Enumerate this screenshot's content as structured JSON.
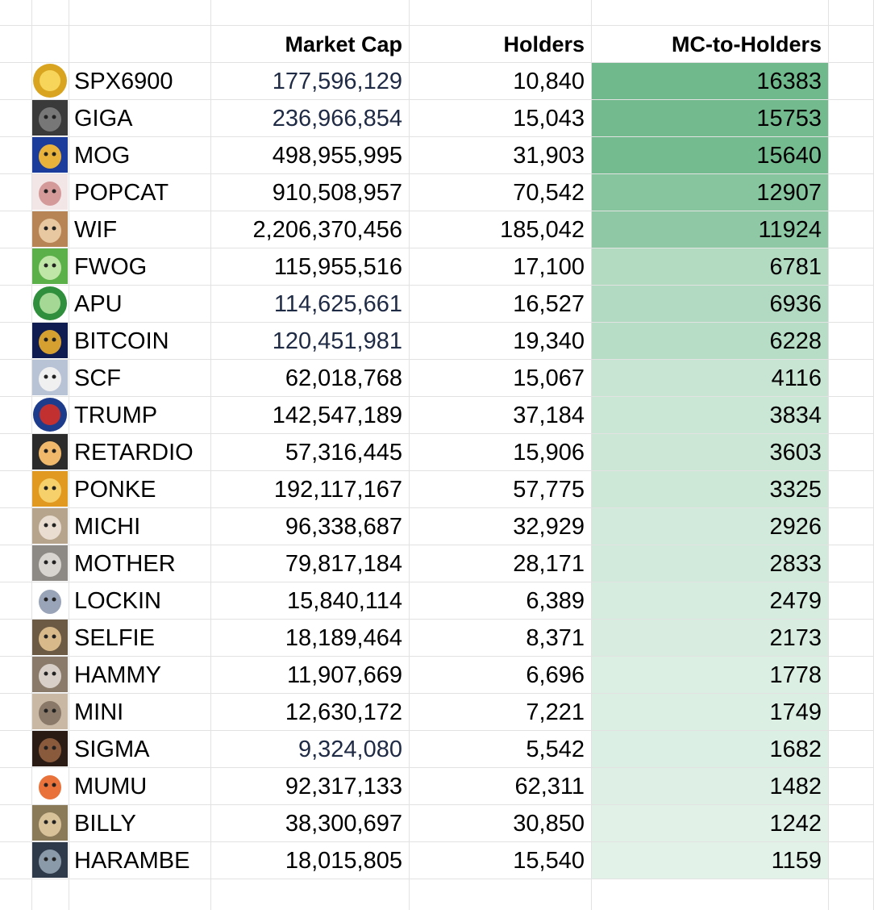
{
  "headers": {
    "market_cap": "Market Cap",
    "holders": "Holders",
    "mc_to_holders": "MC-to-Holders"
  },
  "colors": {
    "heat_dark": "#6fb98c",
    "heat_light": "#e2f2e8",
    "market_cap_blue": "#1f2a44",
    "grid": "#e2e2e2"
  },
  "rows": [
    {
      "name": "SPX6900",
      "market_cap": "177,596,129",
      "holders": "10,840",
      "ratio": "16383",
      "icon": "spx-coin-icon",
      "mc_blue": true
    },
    {
      "name": "GIGA",
      "market_cap": "236,966,854",
      "holders": "15,043",
      "ratio": "15753",
      "icon": "gigachad-face-icon",
      "mc_blue": true
    },
    {
      "name": "MOG",
      "market_cap": "498,955,995",
      "holders": "31,903",
      "ratio": "15640",
      "icon": "mog-cat-icon",
      "mc_blue": false
    },
    {
      "name": "POPCAT",
      "market_cap": "910,508,957",
      "holders": "70,542",
      "ratio": "12907",
      "icon": "popcat-icon",
      "mc_blue": false
    },
    {
      "name": "WIF",
      "market_cap": "2,206,370,456",
      "holders": "185,042",
      "ratio": "11924",
      "icon": "dog-with-hat-icon",
      "mc_blue": false
    },
    {
      "name": "FWOG",
      "market_cap": "115,955,516",
      "holders": "17,100",
      "ratio": "6781",
      "icon": "frog-icon",
      "mc_blue": false
    },
    {
      "name": "APU",
      "market_cap": "114,625,661",
      "holders": "16,527",
      "ratio": "6936",
      "icon": "apu-frog-icon",
      "mc_blue": true
    },
    {
      "name": "BITCOIN",
      "market_cap": "120,451,981",
      "holders": "19,340",
      "ratio": "6228",
      "icon": "harry-potter-bitcoin-icon",
      "mc_blue": true
    },
    {
      "name": "SCF",
      "market_cap": "62,018,768",
      "holders": "15,067",
      "ratio": "4116",
      "icon": "hooded-cat-icon",
      "mc_blue": false
    },
    {
      "name": "TRUMP",
      "market_cap": "142,547,189",
      "holders": "37,184",
      "ratio": "3834",
      "icon": "trump-flag-icon",
      "mc_blue": false
    },
    {
      "name": "RETARDIO",
      "market_cap": "57,316,445",
      "holders": "15,906",
      "ratio": "3603",
      "icon": "retardio-cap-icon",
      "mc_blue": false
    },
    {
      "name": "PONKE",
      "market_cap": "192,117,167",
      "holders": "57,775",
      "ratio": "3325",
      "icon": "ponke-monkey-icon",
      "mc_blue": false
    },
    {
      "name": "MICHI",
      "market_cap": "96,338,687",
      "holders": "32,929",
      "ratio": "2926",
      "icon": "michi-cat-icon",
      "mc_blue": false
    },
    {
      "name": "MOTHER",
      "market_cap": "79,817,184",
      "holders": "28,171",
      "ratio": "2833",
      "icon": "mother-photo-icon",
      "mc_blue": false
    },
    {
      "name": "LOCKIN",
      "market_cap": "15,840,114",
      "holders": "6,389",
      "ratio": "2479",
      "icon": "lockin-chair-icon",
      "mc_blue": false
    },
    {
      "name": "SELFIE",
      "market_cap": "18,189,464",
      "holders": "8,371",
      "ratio": "2173",
      "icon": "selfie-dog-icon",
      "mc_blue": false
    },
    {
      "name": "HAMMY",
      "market_cap": "11,907,669",
      "holders": "6,696",
      "ratio": "1778",
      "icon": "hamster-icon",
      "mc_blue": false
    },
    {
      "name": "MINI",
      "market_cap": "12,630,172",
      "holders": "7,221",
      "ratio": "1749",
      "icon": "mini-monkey-icon",
      "mc_blue": false
    },
    {
      "name": "SIGMA",
      "market_cap": "9,324,080",
      "holders": "5,542",
      "ratio": "1682",
      "icon": "sigma-man-icon",
      "mc_blue": true
    },
    {
      "name": "MUMU",
      "market_cap": "92,317,133",
      "holders": "62,311",
      "ratio": "1482",
      "icon": "mumu-bull-icon",
      "mc_blue": false
    },
    {
      "name": "BILLY",
      "market_cap": "38,300,697",
      "holders": "30,850",
      "ratio": "1242",
      "icon": "billy-dog-icon",
      "mc_blue": false
    },
    {
      "name": "HARAMBE",
      "market_cap": "18,015,805",
      "holders": "15,540",
      "ratio": "1159",
      "icon": "gorilla-icon",
      "mc_blue": false
    }
  ]
}
